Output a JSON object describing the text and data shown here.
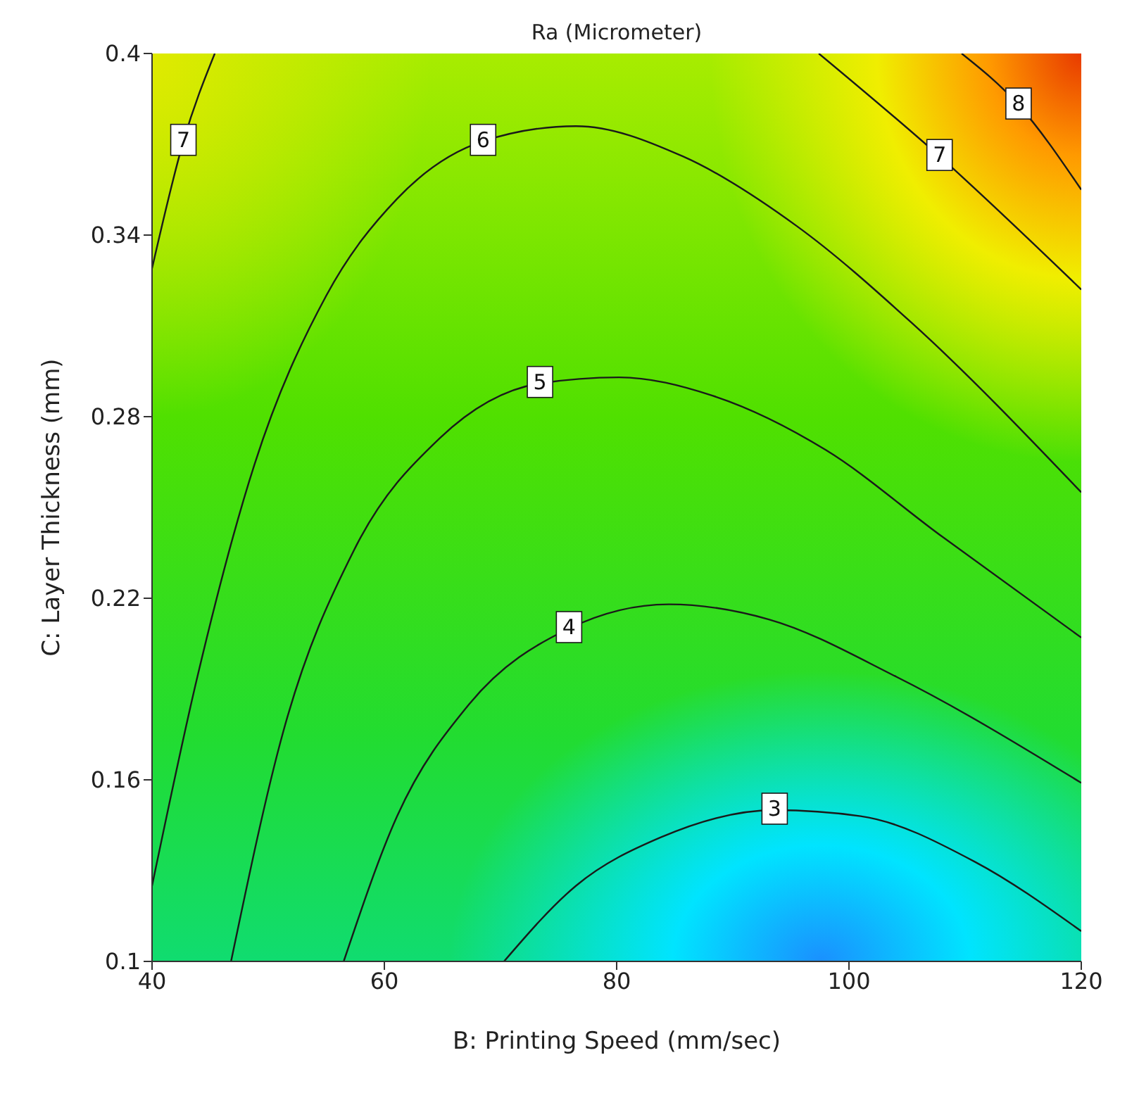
{
  "chart_data": {
    "type": "line",
    "title": "Ra (Micrometer)",
    "xlabel": "B: Printing Speed (mm/sec)",
    "ylabel": "C: Layer Thickness (mm)",
    "xlim": [
      40,
      120
    ],
    "xticks": [
      40,
      60,
      80,
      100,
      120
    ],
    "ylim": [
      0.1,
      0.4
    ],
    "yticks": [
      0.1,
      0.16,
      0.22,
      0.28,
      0.34,
      0.4
    ],
    "grid": false,
    "legend": false,
    "marker": "none",
    "line_style": "solid",
    "series": [
      {
        "name": "3",
        "color": "#1a1a1a",
        "x": [
          70.3,
          76.5,
          83.8,
          93.6,
          101,
          110.8,
          120
        ],
        "values": [
          0.1,
          0.125,
          0.141,
          0.15,
          0.148,
          0.133,
          0.11
        ]
      },
      {
        "name": "4",
        "color": "#1a1a1a",
        "x": [
          56.5,
          61.1,
          67.3,
          75.9,
          84.5,
          93.1,
          104.1,
          120
        ],
        "values": [
          0.1,
          0.148,
          0.185,
          0.21,
          0.218,
          0.213,
          0.194,
          0.159
        ]
      },
      {
        "name": "5",
        "color": "#1a1a1a",
        "x": [
          46.8,
          51.3,
          57.4,
          64.8,
          73.4,
          80.2,
          88.2,
          98,
          107.8,
          120
        ],
        "values": [
          0.1,
          0.176,
          0.236,
          0.273,
          0.291,
          0.293,
          0.287,
          0.269,
          0.241,
          0.207
        ]
      },
      {
        "name": "6",
        "color": "#1a1a1a",
        "x": [
          40,
          43.9,
          48.8,
          55,
          61.1,
          68.5,
          76.5,
          85.7,
          95.5,
          105.4,
          120
        ],
        "values": [
          0.125,
          0.194,
          0.264,
          0.32,
          0.352,
          0.371,
          0.376,
          0.366,
          0.343,
          0.311,
          0.255
        ]
      },
      {
        "name": "7",
        "color": "#1a1a1a",
        "x": [
          40,
          42.7,
          45.4
        ],
        "values": [
          0.329,
          0.371,
          0.4
        ]
      },
      {
        "name": "7",
        "color": "#1a1a1a",
        "x": [
          97.4,
          107.8,
          120
        ],
        "values": [
          0.4,
          0.366,
          0.322
        ]
      },
      {
        "name": "8",
        "color": "#1a1a1a",
        "x": [
          109.7,
          114.6,
          120
        ],
        "values": [
          0.4,
          0.383,
          0.355
        ]
      }
    ]
  }
}
